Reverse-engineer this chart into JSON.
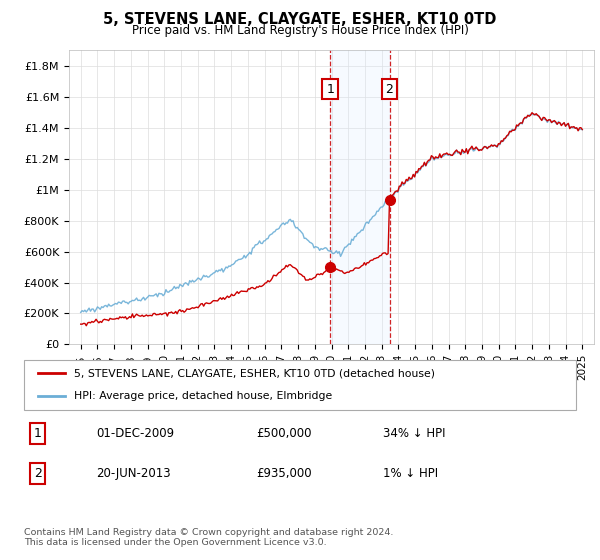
{
  "title": "5, STEVENS LANE, CLAYGATE, ESHER, KT10 0TD",
  "subtitle": "Price paid vs. HM Land Registry's House Price Index (HPI)",
  "ylim": [
    0,
    1900000
  ],
  "yticks": [
    0,
    200000,
    400000,
    600000,
    800000,
    1000000,
    1200000,
    1400000,
    1600000,
    1800000
  ],
  "ytick_labels": [
    "£0",
    "£200K",
    "£400K",
    "£600K",
    "£800K",
    "£1M",
    "£1.2M",
    "£1.4M",
    "£1.6M",
    "£1.8M"
  ],
  "hpi_color": "#6baed6",
  "price_color": "#cc0000",
  "shade_color": "#ddeeff",
  "vline_color": "#cc0000",
  "t1_year": 2009.92,
  "t1_price": 500000,
  "t2_year": 2013.47,
  "t2_price": 935000,
  "legend_line1": "5, STEVENS LANE, CLAYGATE, ESHER, KT10 0TD (detached house)",
  "legend_line2": "HPI: Average price, detached house, Elmbridge",
  "table_row1": [
    "1",
    "01-DEC-2009",
    "£500,000",
    "34% ↓ HPI"
  ],
  "table_row2": [
    "2",
    "20-JUN-2013",
    "£935,000",
    "1% ↓ HPI"
  ],
  "footer": "Contains HM Land Registry data © Crown copyright and database right 2024.\nThis data is licensed under the Open Government Licence v3.0."
}
